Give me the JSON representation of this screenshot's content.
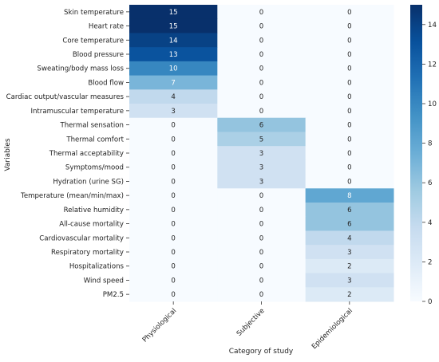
{
  "chart_data": {
    "type": "heatmap",
    "xlabel": "Category of study",
    "ylabel": "Variables",
    "columns": [
      "Physiological",
      "Subjective",
      "Epidemiological"
    ],
    "rows": [
      "Skin temperature",
      "Heart rate",
      "Core temperature",
      "Blood pressure",
      "Sweating/body mass loss",
      "Blood flow",
      "Cardiac output/vascular measures",
      "Intramuscular temperature",
      "Thermal sensation",
      "Thermal comfort",
      "Thermal acceptability",
      "Symptoms/mood",
      "Hydration (urine SG)",
      "Temperature (mean/min/max)",
      "Relative humidity",
      "All-cause mortality",
      "Cardiovascular mortality",
      "Respiratory mortality",
      "Hospitalizations",
      "Wind speed",
      "PM2.5"
    ],
    "values": [
      [
        15,
        0,
        0
      ],
      [
        15,
        0,
        0
      ],
      [
        14,
        0,
        0
      ],
      [
        13,
        0,
        0
      ],
      [
        10,
        0,
        0
      ],
      [
        7,
        0,
        0
      ],
      [
        4,
        0,
        0
      ],
      [
        3,
        0,
        0
      ],
      [
        0,
        6,
        0
      ],
      [
        0,
        5,
        0
      ],
      [
        0,
        3,
        0
      ],
      [
        0,
        3,
        0
      ],
      [
        0,
        3,
        0
      ],
      [
        0,
        0,
        8
      ],
      [
        0,
        0,
        6
      ],
      [
        0,
        0,
        6
      ],
      [
        0,
        0,
        4
      ],
      [
        0,
        0,
        3
      ],
      [
        0,
        0,
        2
      ],
      [
        0,
        0,
        3
      ],
      [
        0,
        0,
        2
      ]
    ],
    "colorbar": {
      "colormap": "Blues",
      "range": [
        0,
        15
      ],
      "ticks": [
        "0",
        "2",
        "4",
        "6",
        "8",
        "10",
        "12",
        "14"
      ],
      "tick_values": [
        0,
        2,
        4,
        6,
        8,
        10,
        12,
        14
      ]
    }
  }
}
